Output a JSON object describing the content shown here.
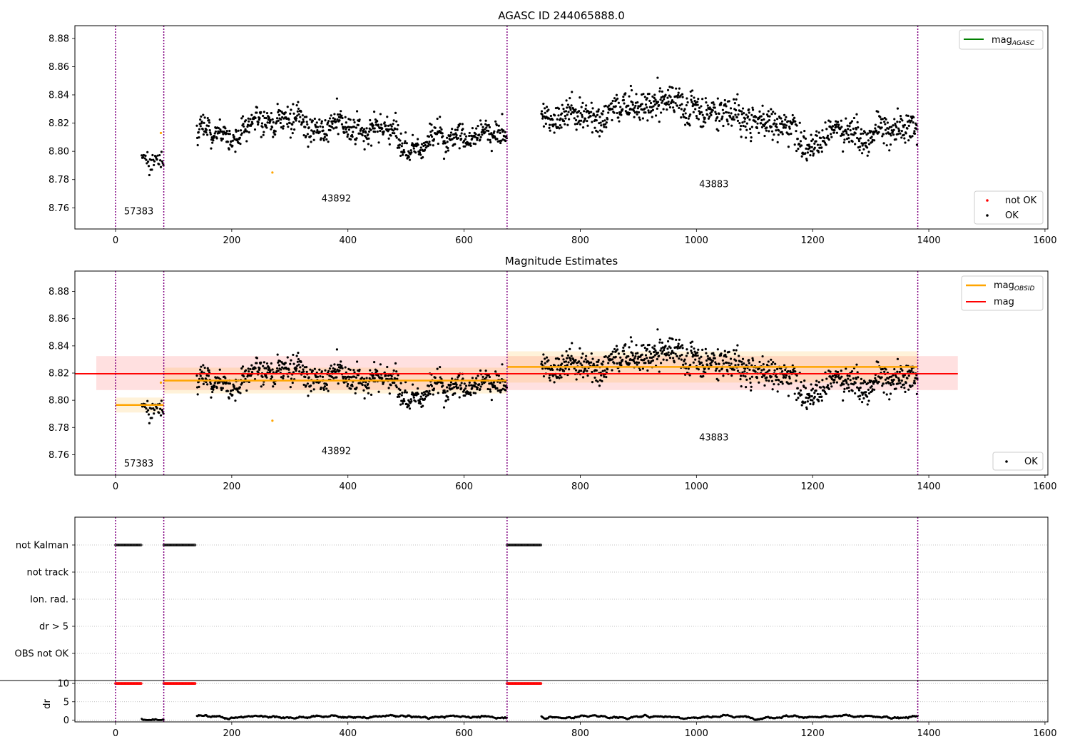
{
  "figure": {
    "panels": [
      {
        "key": "agasc",
        "title": "AGASC ID 244065888.0"
      },
      {
        "key": "estimates",
        "title": "Magnitude Estimates"
      },
      {
        "key": "flags",
        "title": ""
      },
      {
        "key": "dr",
        "title": ""
      }
    ]
  },
  "colors": {
    "points_ok": "#000000",
    "points_not_ok": "#ff0000",
    "excluded_points": "#ffa500",
    "mag_agasc": "#008000",
    "mag_obsid": "#ffa500",
    "mag": "#ff0000",
    "obsid_boundary": "#800080",
    "grid": "#b0b0b0"
  },
  "chart_data": [
    {
      "type": "scatter",
      "panel": "agasc",
      "title": "AGASC ID 244065888.0",
      "xlim": [
        -70,
        1605
      ],
      "ylim": [
        8.745,
        8.889
      ],
      "xticks": [
        0,
        200,
        400,
        600,
        800,
        1000,
        1200,
        1400,
        1600
      ],
      "yticks": [
        8.76,
        8.78,
        8.8,
        8.82,
        8.84,
        8.86,
        8.88
      ],
      "legend_upper": {
        "placement": "top-right",
        "entries": [
          "mag_{AGASC}"
        ]
      },
      "legend_lower": {
        "placement": "bottom-right",
        "entries": [
          "not OK",
          "OK"
        ]
      },
      "obsid_boundaries": [
        0,
        83,
        674,
        1381
      ],
      "obsid_labels": [
        {
          "text": "57383",
          "x": 40,
          "y": 8.7575
        },
        {
          "text": "43892",
          "x": 380,
          "y": 8.7665
        },
        {
          "text": "43883",
          "x": 1030,
          "y": 8.7765
        }
      ],
      "segments": [
        {
          "obsid": "57383",
          "x_range": [
            45,
            83
          ],
          "mean": 8.797,
          "spread": 0.006
        },
        {
          "obsid": "43892",
          "x_range": [
            140,
            674
          ],
          "mean": 8.815,
          "spread": 0.009
        },
        {
          "obsid": "43883",
          "x_range": [
            733,
            1381
          ],
          "mean": 8.825,
          "spread": 0.011
        }
      ],
      "excluded_points": [
        {
          "x": 78,
          "y": 8.813
        },
        {
          "x": 270,
          "y": 8.785
        }
      ],
      "series": [
        {
          "name": "OK",
          "color": "#000000"
        },
        {
          "name": "not OK",
          "color": "#ff0000"
        }
      ]
    },
    {
      "type": "scatter",
      "panel": "estimates",
      "title": "Magnitude Estimates",
      "xlim": [
        -70,
        1605
      ],
      "ylim": [
        8.745,
        8.895
      ],
      "xticks": [
        0,
        200,
        400,
        600,
        800,
        1000,
        1200,
        1400,
        1600
      ],
      "yticks": [
        8.76,
        8.78,
        8.8,
        8.82,
        8.84,
        8.86,
        8.88
      ],
      "legend_upper": {
        "placement": "top-right",
        "entries": [
          "mag_{OBSID}",
          "mag"
        ]
      },
      "legend_lower": {
        "placement": "bottom-right",
        "entries": [
          "OK"
        ]
      },
      "obsid_boundaries": [
        0,
        83,
        674,
        1381
      ],
      "obsid_labels": [
        {
          "text": "57383",
          "x": 40,
          "y": 8.7535
        },
        {
          "text": "43892",
          "x": 380,
          "y": 8.7625
        },
        {
          "text": "43883",
          "x": 1030,
          "y": 8.7725
        }
      ],
      "mag": {
        "value": 8.8195,
        "band": [
          8.8075,
          8.8325
        ],
        "x_range": [
          -70,
          1450
        ]
      },
      "mag_obsid": [
        {
          "x_range": [
            0,
            83
          ],
          "value": 8.7965,
          "band": [
            8.791,
            8.802
          ]
        },
        {
          "x_range": [
            83,
            674
          ],
          "value": 8.8145,
          "band": [
            8.805,
            8.824
          ]
        },
        {
          "x_range": [
            674,
            1381
          ],
          "value": 8.8245,
          "band": [
            8.813,
            8.836
          ]
        }
      ],
      "series": [
        {
          "name": "OK",
          "color": "#000000"
        }
      ]
    },
    {
      "type": "scatter",
      "panel": "flags",
      "xlim": [
        -70,
        1605
      ],
      "categories": [
        "not Kalman",
        "not track",
        "Ion. rad.",
        "dr > 5",
        "OBS not OK"
      ],
      "obsid_boundaries": [
        0,
        83,
        674,
        1381
      ],
      "flag_runs": [
        {
          "category": "not Kalman",
          "x_range": [
            0,
            45
          ]
        },
        {
          "category": "not Kalman",
          "x_range": [
            83,
            137
          ]
        },
        {
          "category": "not Kalman",
          "x_range": [
            674,
            733
          ]
        }
      ]
    },
    {
      "type": "scatter",
      "panel": "dr",
      "ylabel": "dr",
      "xlim": [
        -70,
        1605
      ],
      "ylim": [
        -0.5,
        10.8
      ],
      "xticks": [
        0,
        200,
        400,
        600,
        800,
        1000,
        1200,
        1400,
        1600
      ],
      "yticks": [
        0,
        5,
        10
      ],
      "obsid_boundaries": [
        0,
        83,
        674,
        1381
      ],
      "dr_clipped": [
        {
          "x_range": [
            0,
            45
          ],
          "value": 10
        },
        {
          "x_range": [
            83,
            137
          ],
          "value": 10
        },
        {
          "x_range": [
            674,
            733
          ],
          "value": 10
        }
      ],
      "dr_segments": [
        {
          "x_range": [
            45,
            83
          ],
          "mean": 0.25,
          "spread": 0.15
        },
        {
          "x_range": [
            140,
            674
          ],
          "mean": 0.9,
          "spread": 0.4
        },
        {
          "x_range": [
            733,
            1381
          ],
          "mean": 0.9,
          "spread": 0.45
        }
      ]
    }
  ]
}
